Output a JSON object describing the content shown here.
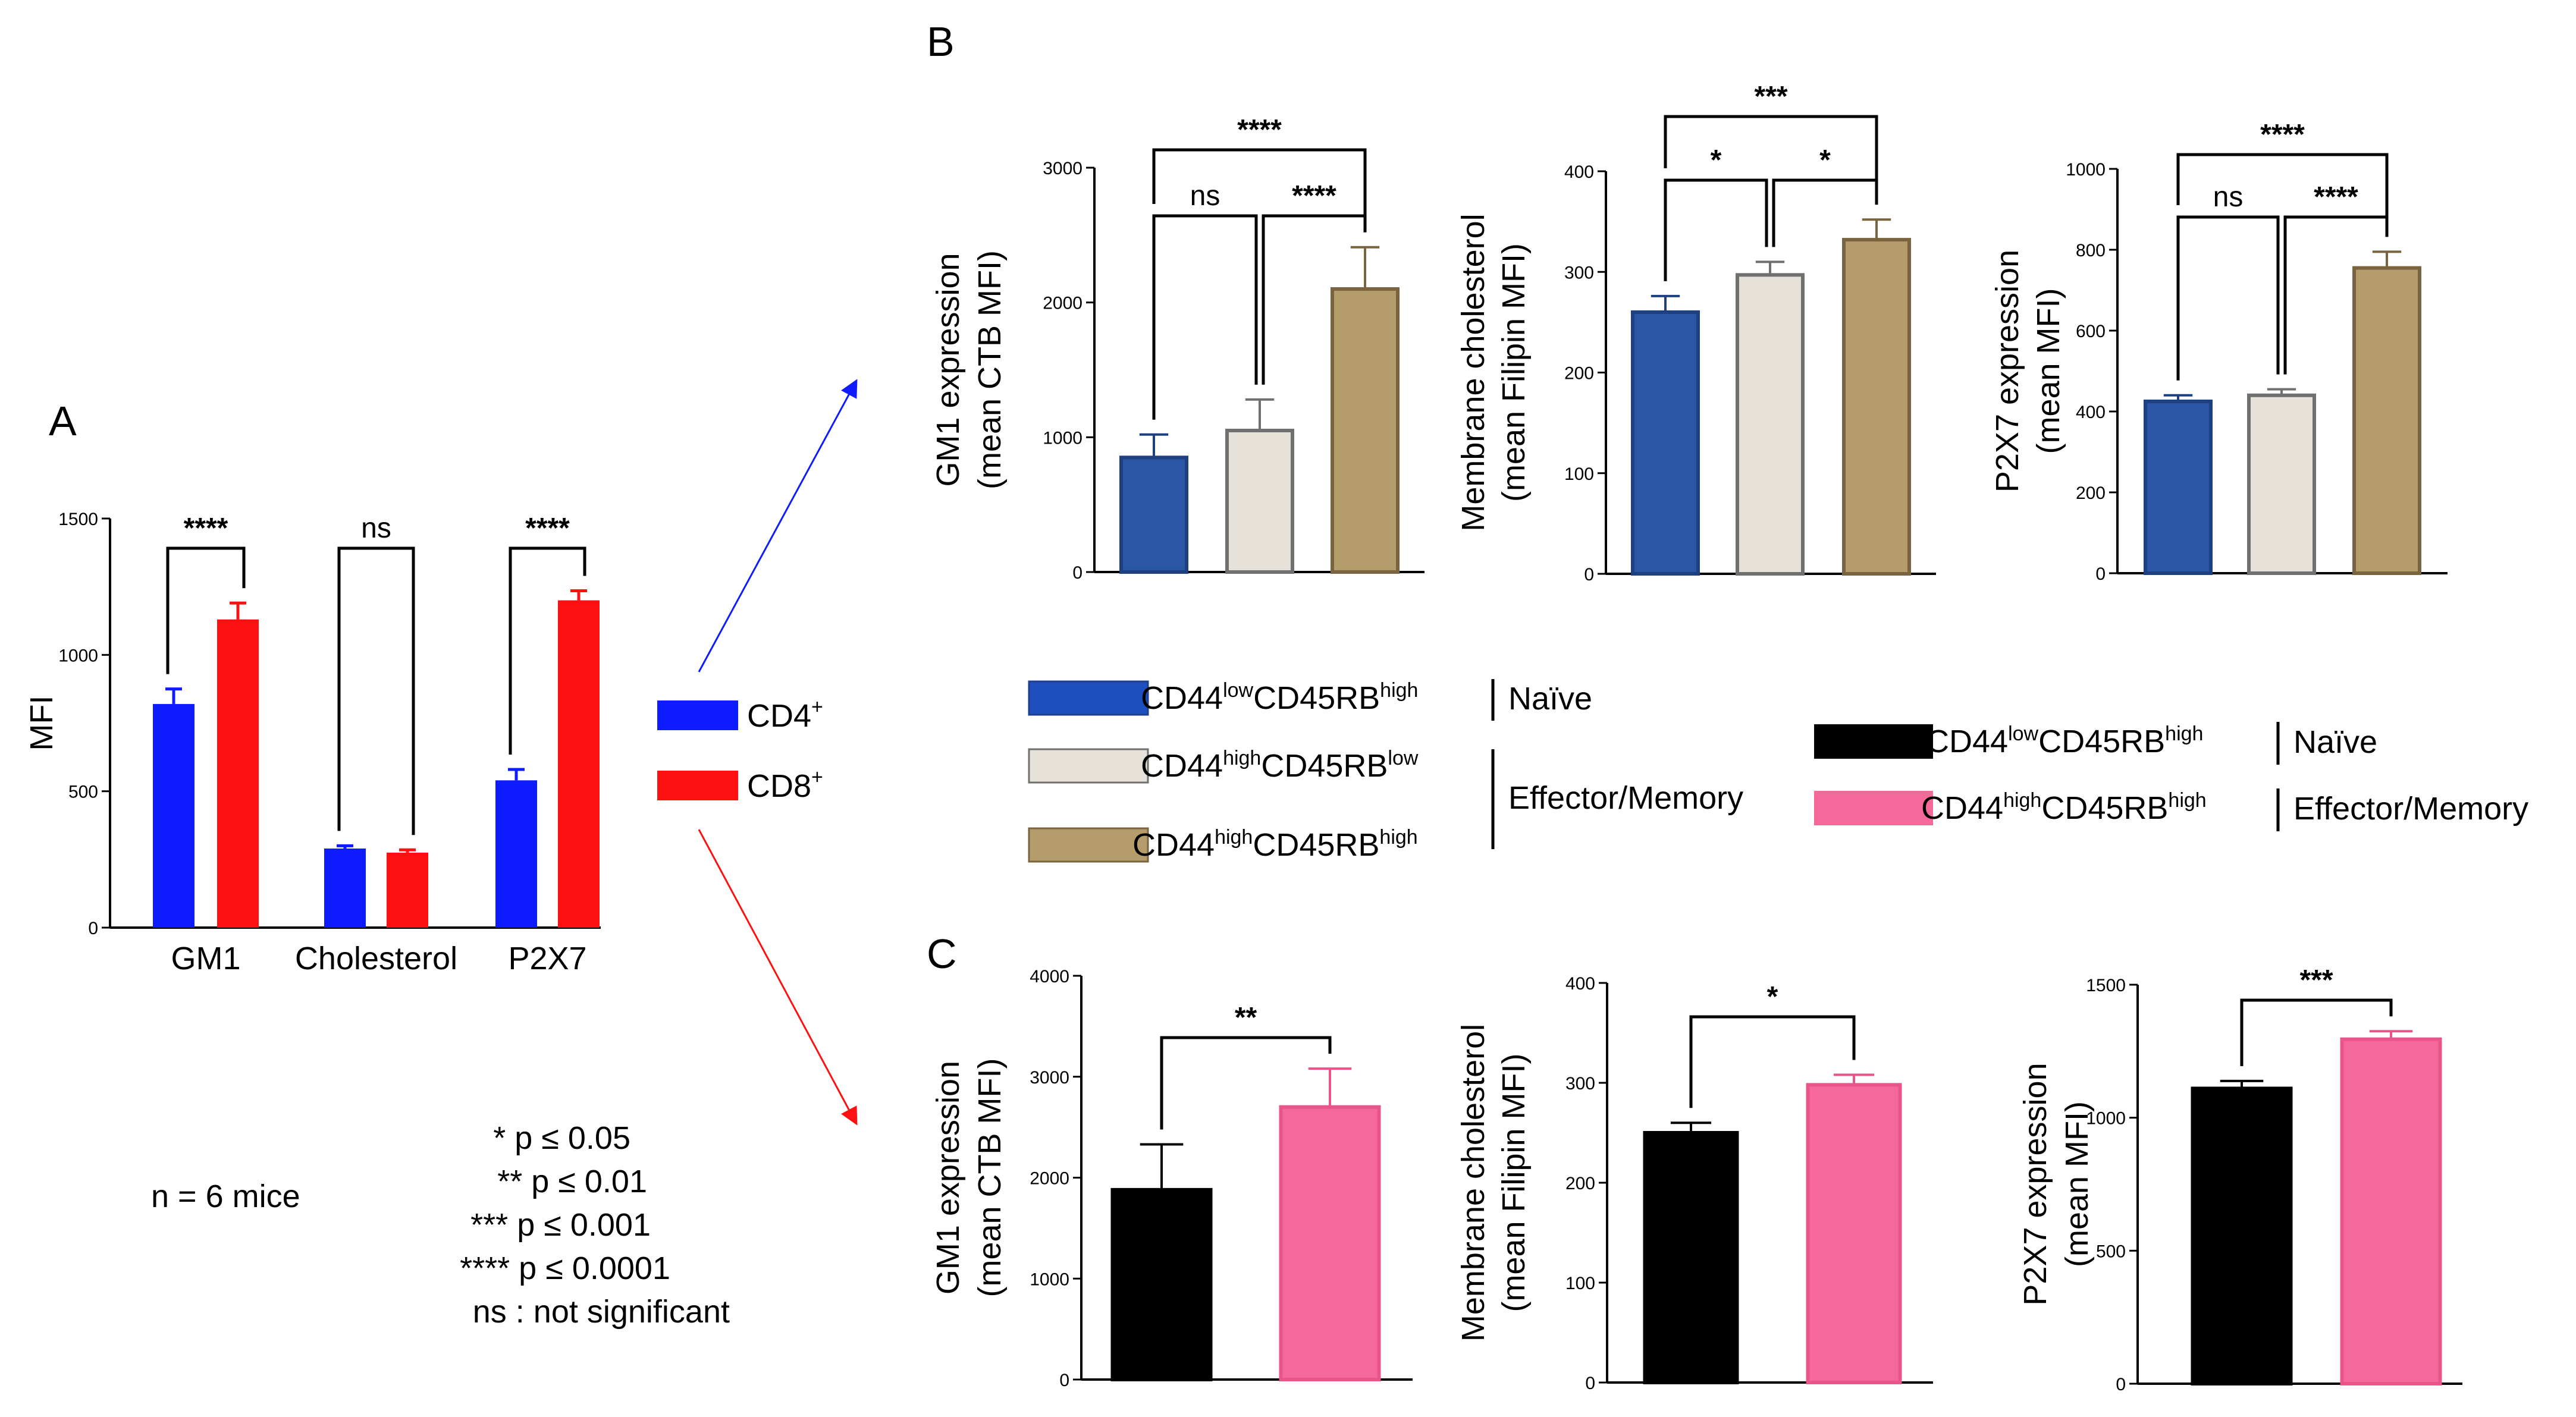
{
  "panel_labels": {
    "a": "A",
    "b": "B",
    "c": "C"
  },
  "colors": {
    "cd4": "#0f1cff",
    "cd8": "#ff1010",
    "naive_blue": "#2b56a6",
    "eff_low": "#e6e1d9",
    "eff_high": "#b59c6b",
    "naive_black": "#000000",
    "eff_pink": "#f5699a",
    "eff_low_border": "#707070",
    "eff_high_border": "#7a6440"
  },
  "legend_a": [
    {
      "base": "CD4",
      "sup": "+"
    },
    {
      "base": "CD8",
      "sup": "+"
    }
  ],
  "legend_b": {
    "items": [
      {
        "a": "CD44",
        "s1": "low",
        "b": "CD45RB",
        "s2": "high"
      },
      {
        "a": "CD44",
        "s1": "high",
        "b": "CD45RB",
        "s2": "low"
      },
      {
        "a": "CD44",
        "s1": "high",
        "b": "CD45RB",
        "s2": "high"
      }
    ],
    "naive_label": "Naïve",
    "effector_label": "Effector/Memory"
  },
  "legend_c": {
    "items": [
      {
        "a": "CD44",
        "s1": "low",
        "b": "CD45RB",
        "s2": "high"
      },
      {
        "a": "CD44",
        "s1": "high",
        "b": "CD45RB",
        "s2": "high"
      }
    ],
    "naive_label": "Naïve",
    "effector_label": "Effector/Memory"
  },
  "notes": {
    "n": "n = 6 mice",
    "p1": "* p ≤ 0.05",
    "p2": "** p ≤ 0.01",
    "p3": "*** p ≤ 0.001",
    "p4": "**** p ≤ 0.0001",
    "p5": "ns : not significant"
  },
  "chart_data": [
    {
      "id": "A",
      "type": "bar",
      "ylabel": "MFI",
      "ylim": [
        0,
        1500
      ],
      "yticks": [
        "0",
        "500",
        "1000",
        "1500"
      ],
      "categories": [
        "GM1",
        "Cholesterol",
        "P2X7"
      ],
      "series": [
        {
          "name": "CD4+",
          "values": [
            820,
            290,
            540
          ],
          "errors": [
            55,
            10,
            40
          ]
        },
        {
          "name": "CD8+",
          "values": [
            1130,
            275,
            1200
          ],
          "errors": [
            60,
            10,
            35
          ]
        }
      ],
      "significance": [
        "****",
        "ns",
        "****"
      ]
    },
    {
      "id": "B1",
      "type": "bar",
      "ylabel": [
        "GM1 expression",
        "(mean CTB MFI)"
      ],
      "ylim": [
        0,
        3000
      ],
      "yticks": [
        "0",
        "1000",
        "2000",
        "3000"
      ],
      "categories": [
        "CD44lowCD45RBhigh",
        "CD44highCD45RBlow",
        "CD44highCD45RBhigh"
      ],
      "values": [
        850,
        1050,
        2100
      ],
      "errors": [
        170,
        230,
        310
      ],
      "comparisons": [
        {
          "from": 0,
          "to": 1,
          "label": "ns"
        },
        {
          "from": 1,
          "to": 2,
          "label": "****"
        },
        {
          "from": 0,
          "to": 2,
          "label": "****"
        }
      ]
    },
    {
      "id": "B2",
      "type": "bar",
      "ylabel": [
        "Membrane cholesterol",
        "(mean Filipin MFI)"
      ],
      "ylim": [
        0,
        400
      ],
      "yticks": [
        "0",
        "100",
        "200",
        "300",
        "400"
      ],
      "categories": [
        "CD44lowCD45RBhigh",
        "CD44highCD45RBlow",
        "CD44highCD45RBhigh"
      ],
      "values": [
        260,
        297,
        332
      ],
      "errors": [
        16,
        13,
        20
      ],
      "comparisons": [
        {
          "from": 0,
          "to": 1,
          "label": "*"
        },
        {
          "from": 1,
          "to": 2,
          "label": "*"
        },
        {
          "from": 0,
          "to": 2,
          "label": "***"
        }
      ]
    },
    {
      "id": "B3",
      "type": "bar",
      "ylabel": [
        "P2X7 expression",
        "(mean MFI)"
      ],
      "ylim": [
        0,
        1000
      ],
      "yticks": [
        "0",
        "200",
        "400",
        "600",
        "800",
        "1000"
      ],
      "categories": [
        "CD44lowCD45RBhigh",
        "CD44highCD45RBlow",
        "CD44highCD45RBhigh"
      ],
      "values": [
        425,
        440,
        755
      ],
      "errors": [
        15,
        15,
        40
      ],
      "comparisons": [
        {
          "from": 0,
          "to": 1,
          "label": "ns"
        },
        {
          "from": 1,
          "to": 2,
          "label": "****"
        },
        {
          "from": 0,
          "to": 2,
          "label": "****"
        }
      ]
    },
    {
      "id": "C1",
      "type": "bar",
      "ylabel": [
        "GM1 expression",
        "(mean CTB MFI)"
      ],
      "ylim": [
        0,
        4000
      ],
      "yticks": [
        "0",
        "1000",
        "2000",
        "3000",
        "4000"
      ],
      "categories": [
        "CD44lowCD45RBhigh",
        "CD44highCD45RBhigh"
      ],
      "values": [
        1880,
        2700
      ],
      "errors": [
        450,
        380
      ],
      "comparisons": [
        {
          "from": 0,
          "to": 1,
          "label": "**"
        }
      ]
    },
    {
      "id": "C2",
      "type": "bar",
      "ylabel": [
        "Membrane cholesterol",
        "(mean Filipin MFI)"
      ],
      "ylim": [
        0,
        400
      ],
      "yticks": [
        "0",
        "100",
        "200",
        "300",
        "400"
      ],
      "categories": [
        "CD44lowCD45RBhigh",
        "CD44highCD45RBhigh"
      ],
      "values": [
        250,
        298
      ],
      "errors": [
        10,
        10
      ],
      "comparisons": [
        {
          "from": 0,
          "to": 1,
          "label": "*"
        }
      ]
    },
    {
      "id": "C3",
      "type": "bar",
      "ylabel": [
        "P2X7 expression",
        "(mean MFI)"
      ],
      "ylim": [
        0,
        1500
      ],
      "yticks": [
        "0",
        "500",
        "1000",
        "1500"
      ],
      "categories": [
        "CD44lowCD45RBhigh",
        "CD44highCD45RBhigh"
      ],
      "values": [
        1110,
        1295
      ],
      "errors": [
        28,
        30
      ],
      "comparisons": [
        {
          "from": 0,
          "to": 1,
          "label": "***"
        }
      ]
    }
  ]
}
